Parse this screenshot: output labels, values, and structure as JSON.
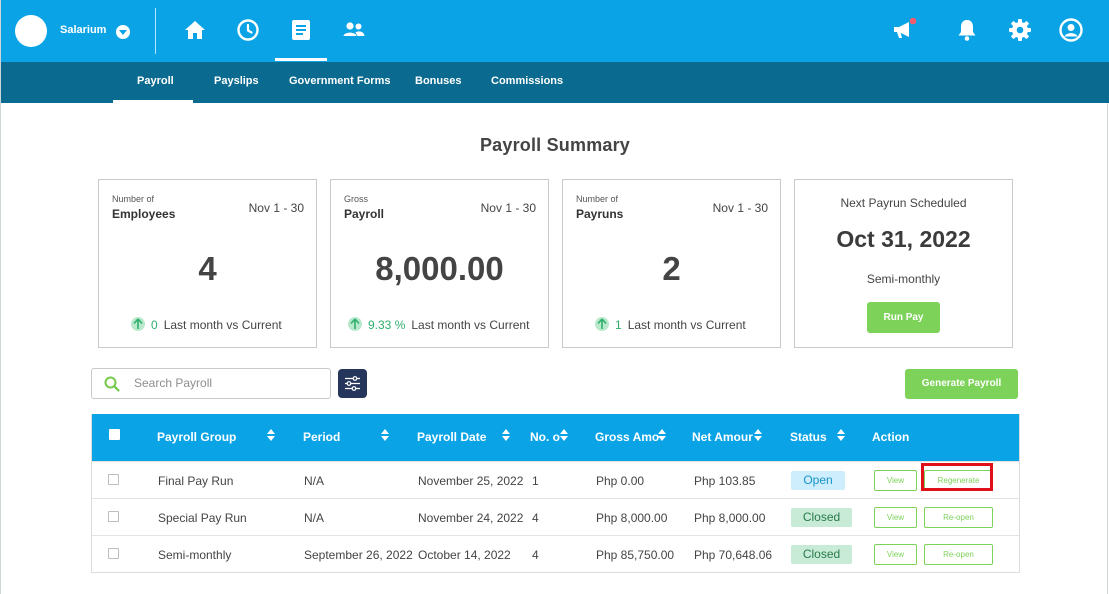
{
  "app": {
    "brand": "Salarium"
  },
  "subnav": {
    "tabs": [
      "Payroll",
      "Payslips",
      "Government Forms",
      "Bonuses",
      "Commissions"
    ]
  },
  "page_title": "Payroll Summary",
  "cards": [
    {
      "small": "Number of",
      "label": "Employees",
      "period": "Nov 1 - 30",
      "value": "4",
      "trend_value": "0",
      "trend_text": "Last month vs Current"
    },
    {
      "small": "Gross",
      "label": "Payroll",
      "period": "Nov 1 - 30",
      "value": "8,000.00",
      "trend_value": "9.33 %",
      "trend_text": "Last month vs Current"
    },
    {
      "small": "Number of",
      "label": "Payruns",
      "period": "Nov 1 - 30",
      "value": "2",
      "trend_value": "1",
      "trend_text": "Last month vs Current"
    }
  ],
  "next_payrun": {
    "heading": "Next Payrun Scheduled",
    "date": "Oct 31, 2022",
    "frequency": "Semi-monthly",
    "button": "Run Pay"
  },
  "search": {
    "placeholder": "Search Payroll"
  },
  "generate_button": "Generate Payroll",
  "table": {
    "headers": [
      "Payroll Group",
      "Period",
      "Payroll Date",
      "No. o",
      "Gross Amo",
      "Net Amour",
      "Status",
      "Action"
    ],
    "rows": [
      {
        "group": "Final Pay Run",
        "period": "N/A",
        "date": "November 25, 2022",
        "count": "1",
        "gross": "Php 0.00",
        "net": "Php 103.85",
        "status": "Open",
        "view": "View",
        "action": "Regenerate"
      },
      {
        "group": "Special Pay Run",
        "period": "N/A",
        "date": "November 24, 2022",
        "count": "4",
        "gross": "Php 8,000.00",
        "net": "Php 8,000.00",
        "status": "Closed",
        "view": "View",
        "action": "Re-open"
      },
      {
        "group": "Semi-monthly",
        "period": "September 26, 2022",
        "date": "October 14, 2022",
        "count": "4",
        "gross": "Php 85,750.00",
        "net": "Php 70,648.06",
        "status": "Closed",
        "view": "View",
        "action": "Re-open"
      }
    ]
  },
  "colors": {
    "primary": "#0aa3e6",
    "subnav": "#0a6a8f",
    "green": "#7dd35a",
    "highlight": "#e0101b"
  },
  "icons": [
    "home-icon",
    "clock-icon",
    "document-icon",
    "people-icon",
    "megaphone-icon",
    "bell-icon",
    "gear-icon",
    "user-icon",
    "search-icon",
    "filter-icon",
    "arrow-up-icon",
    "sort-icon"
  ]
}
